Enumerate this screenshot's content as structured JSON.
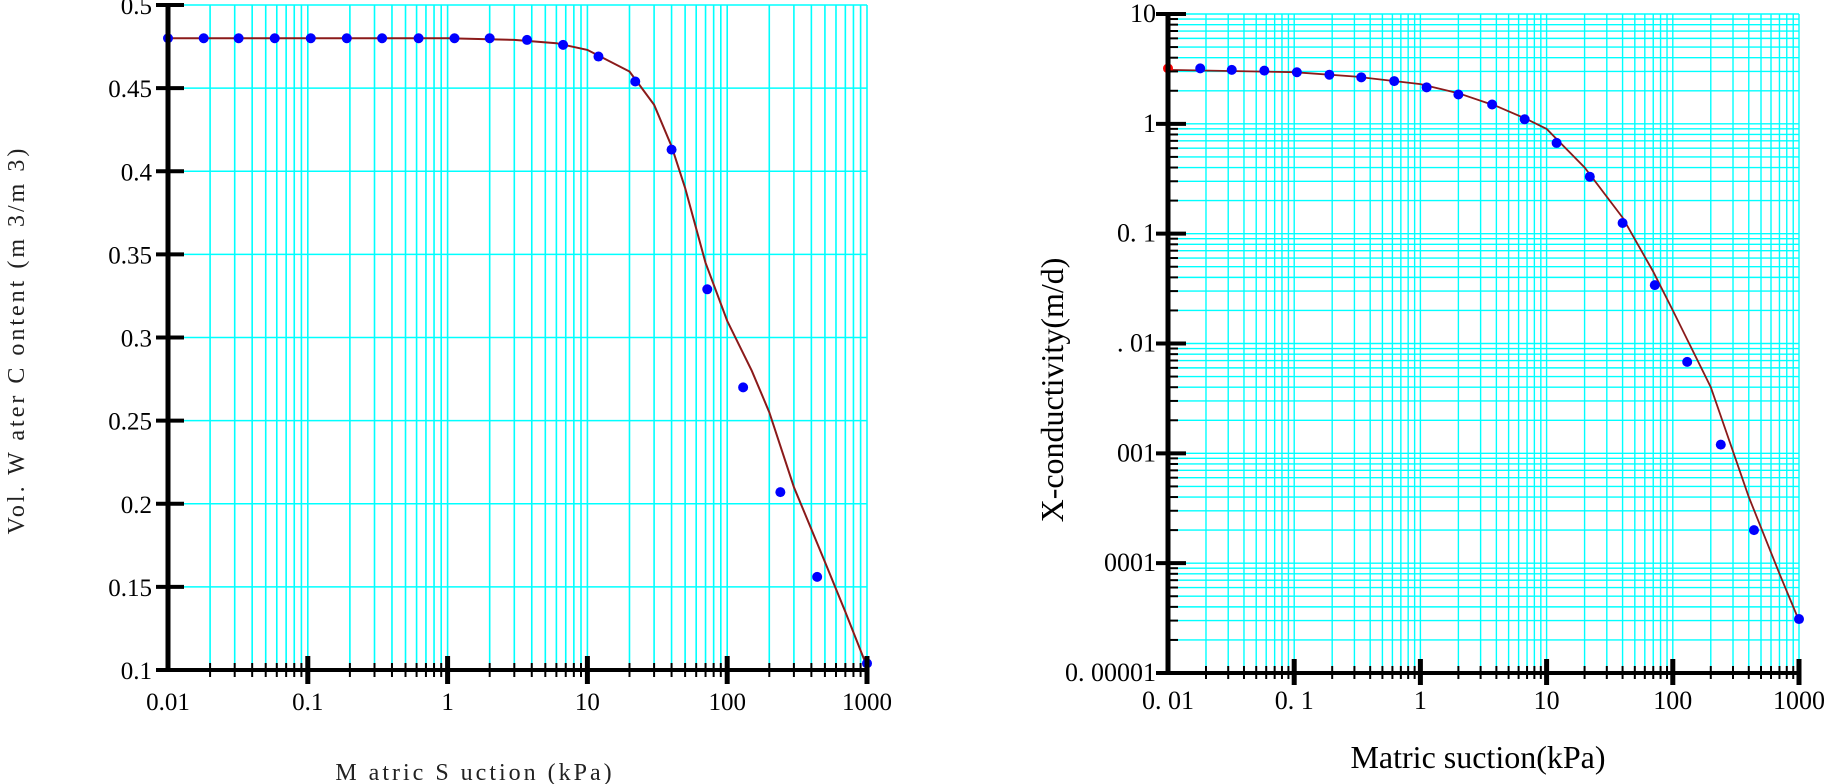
{
  "colors": {
    "grid": "#00ffff",
    "axis": "#000000",
    "curve": "#8b1a1a",
    "points": "#0000ff",
    "highlight_point": "#ff0000"
  },
  "chart_data": [
    {
      "type": "line",
      "title": "",
      "xlabel": "M atric S uction (kPa)",
      "ylabel": "Vol. W ater C ontent (m 3/m 3)",
      "xscale": "log",
      "xlim": [
        0.01,
        1000
      ],
      "ylim": [
        0.1,
        0.5
      ],
      "grid": true,
      "x_tick_labels": [
        "0.01",
        "0.1",
        "1",
        "10",
        "100",
        "1000"
      ],
      "y_tick_labels": [
        "0.1",
        "0.15",
        "0.2",
        "0.25",
        "0.3",
        "0.35",
        "0.4",
        "0.45",
        "0.5"
      ],
      "series": [
        {
          "name": "measured points",
          "style": "markers",
          "x": [
            0.01,
            0.018,
            0.032,
            0.058,
            0.105,
            0.19,
            0.34,
            0.62,
            1.12,
            2.0,
            3.7,
            6.7,
            12,
            22,
            40,
            72,
            130,
            240,
            440,
            1000
          ],
          "y": [
            0.48,
            0.48,
            0.48,
            0.48,
            0.48,
            0.48,
            0.48,
            0.48,
            0.48,
            0.48,
            0.479,
            0.476,
            0.469,
            0.454,
            0.413,
            0.329,
            0.27,
            0.207,
            0.156,
            0.104
          ]
        },
        {
          "name": "fitted curve",
          "style": "line",
          "x": [
            0.01,
            0.1,
            1,
            3,
            6,
            10,
            20,
            30,
            40,
            50,
            70,
            100,
            150,
            200,
            300,
            500,
            700,
            1000
          ],
          "y": [
            0.48,
            0.48,
            0.48,
            0.479,
            0.477,
            0.473,
            0.46,
            0.44,
            0.415,
            0.39,
            0.345,
            0.31,
            0.28,
            0.255,
            0.21,
            0.165,
            0.135,
            0.102
          ]
        }
      ]
    },
    {
      "type": "line",
      "title": "",
      "xlabel": "Matric suction(kPa)",
      "ylabel": "X-conductivity(m/d)",
      "xscale": "log",
      "yscale": "log",
      "xlim": [
        0.01,
        1000
      ],
      "ylim": [
        1e-05,
        10
      ],
      "grid": true,
      "x_tick_labels": [
        "0. 01",
        "0. 1",
        "1",
        "10",
        "100",
        "1000"
      ],
      "y_tick_labels": [
        "0. 00001",
        "0001",
        "001",
        ". 01",
        "0. 1",
        "1",
        "10"
      ],
      "series": [
        {
          "name": "highlighted point",
          "style": "marker-red",
          "x": [
            0.01
          ],
          "y": [
            3.2
          ]
        },
        {
          "name": "computed points",
          "style": "markers",
          "x": [
            0.018,
            0.032,
            0.058,
            0.105,
            0.19,
            0.34,
            0.62,
            1.12,
            2.0,
            3.7,
            6.7,
            12,
            22,
            40,
            72,
            130,
            240,
            440,
            1000
          ],
          "y": [
            3.2,
            3.1,
            3.05,
            2.95,
            2.8,
            2.65,
            2.45,
            2.15,
            1.85,
            1.5,
            1.1,
            0.67,
            0.33,
            0.125,
            0.034,
            0.0068,
            0.0012,
            0.0002,
            3.1e-05
          ]
        },
        {
          "name": "fitted curve",
          "style": "line",
          "x": [
            0.01,
            0.1,
            0.3,
            1,
            2,
            4,
            7,
            10,
            20,
            40,
            70,
            100,
            200,
            400,
            700,
            1000
          ],
          "y": [
            3.1,
            2.95,
            2.7,
            2.3,
            1.9,
            1.45,
            1.1,
            0.9,
            0.4,
            0.14,
            0.045,
            0.02,
            0.004,
            0.0004,
            8e-05,
            3e-05
          ]
        }
      ]
    }
  ]
}
